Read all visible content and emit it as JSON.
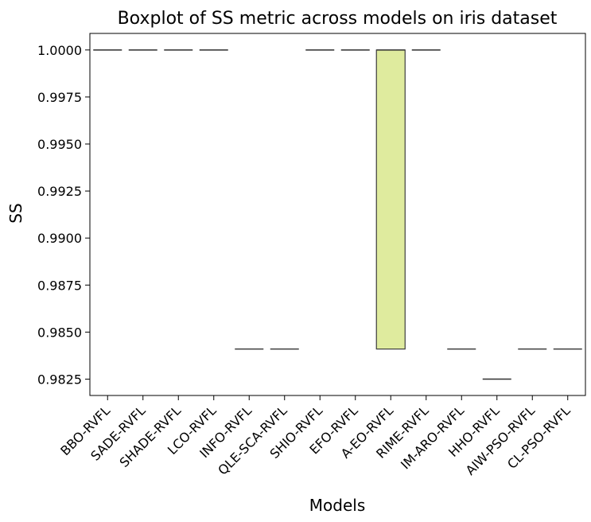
{
  "chart_data": {
    "type": "box",
    "title": "Boxplot of SS metric across models on iris dataset",
    "xlabel": "Models",
    "ylabel": "SS",
    "ylim": [
      0.98163,
      1.00088
    ],
    "yticks": [
      "0.9825",
      "0.9850",
      "0.9875",
      "0.9900",
      "0.9925",
      "0.9950",
      "0.9975",
      "1.0000"
    ],
    "ytick_values": [
      0.9825,
      0.985,
      0.9875,
      0.99,
      0.9925,
      0.995,
      0.9975,
      1.0
    ],
    "categories": [
      "BBO-RVFL",
      "SADE-RVFL",
      "SHADE-RVFL",
      "LCO-RVFL",
      "INFO-RVFL",
      "QLE-SCA-RVFL",
      "SHIO-RVFL",
      "EFO-RVFL",
      "A-EO-RVFL",
      "RIME-RVFL",
      "IM-ARO-RVFL",
      "HHO-RVFL",
      "AIW-PSO-RVFL",
      "CL-PSO-RVFL"
    ],
    "boxes": [
      {
        "q1": 1.0,
        "median": 1.0,
        "q3": 1.0,
        "whisker_low": 1.0,
        "whisker_high": 1.0,
        "color": "#000000"
      },
      {
        "q1": 1.0,
        "median": 1.0,
        "q3": 1.0,
        "whisker_low": 1.0,
        "whisker_high": 1.0,
        "color": "#000000"
      },
      {
        "q1": 1.0,
        "median": 1.0,
        "q3": 1.0,
        "whisker_low": 1.0,
        "whisker_high": 1.0,
        "color": "#000000"
      },
      {
        "q1": 1.0,
        "median": 1.0,
        "q3": 1.0,
        "whisker_low": 1.0,
        "whisker_high": 1.0,
        "color": "#000000"
      },
      {
        "q1": 0.9841,
        "median": 0.9841,
        "q3": 0.9841,
        "whisker_low": 0.9841,
        "whisker_high": 0.9841,
        "color": "#000000"
      },
      {
        "q1": 0.9841,
        "median": 0.9841,
        "q3": 0.9841,
        "whisker_low": 0.9841,
        "whisker_high": 0.9841,
        "color": "#000000"
      },
      {
        "q1": 1.0,
        "median": 1.0,
        "q3": 1.0,
        "whisker_low": 1.0,
        "whisker_high": 1.0,
        "color": "#000000"
      },
      {
        "q1": 1.0,
        "median": 1.0,
        "q3": 1.0,
        "whisker_low": 1.0,
        "whisker_high": 1.0,
        "color": "#000000"
      },
      {
        "q1": 0.9841,
        "median": 1.0,
        "q3": 1.0,
        "whisker_low": 0.9841,
        "whisker_high": 1.0,
        "color": "#dfeb9e"
      },
      {
        "q1": 1.0,
        "median": 1.0,
        "q3": 1.0,
        "whisker_low": 1.0,
        "whisker_high": 1.0,
        "color": "#000000"
      },
      {
        "q1": 0.9841,
        "median": 0.9841,
        "q3": 0.9841,
        "whisker_low": 0.9841,
        "whisker_high": 0.9841,
        "color": "#000000"
      },
      {
        "q1": 0.9825,
        "median": 0.9825,
        "q3": 0.9825,
        "whisker_low": 0.9825,
        "whisker_high": 0.9825,
        "color": "#000000"
      },
      {
        "q1": 0.9841,
        "median": 0.9841,
        "q3": 0.9841,
        "whisker_low": 0.9841,
        "whisker_high": 0.9841,
        "color": "#000000"
      },
      {
        "q1": 0.9841,
        "median": 0.9841,
        "q3": 0.9841,
        "whisker_low": 0.9841,
        "whisker_high": 0.9841,
        "color": "#000000"
      }
    ],
    "grid": false,
    "legend": "none"
  }
}
